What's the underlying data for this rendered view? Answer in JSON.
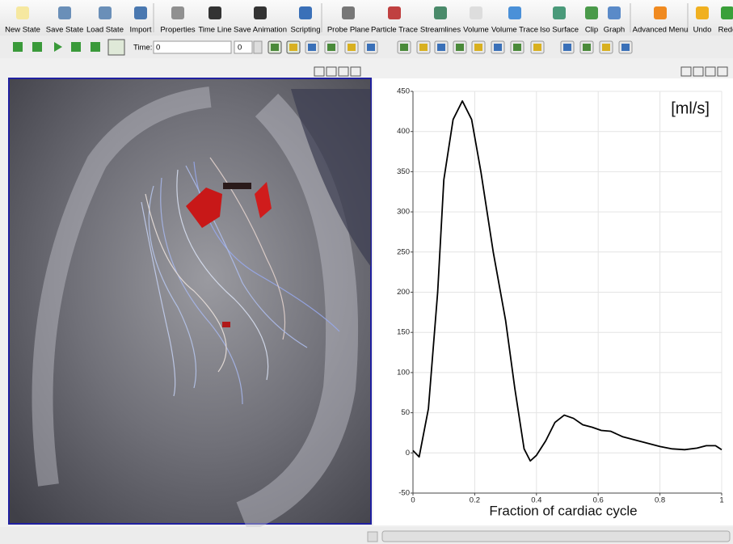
{
  "toolbar": {
    "buttons": [
      "New State",
      "Save State",
      "Load State",
      "Import",
      "Properties",
      "Time Line",
      "Save Animation",
      "Scripting",
      "Probe Plane",
      "Particle Trace",
      "Streamlines",
      "Volume",
      "Volume Trace",
      "Iso Surface",
      "Clip",
      "Graph",
      "Advanced Menu",
      "Undo",
      "Redo"
    ]
  },
  "timebar": {
    "label": "Time:",
    "time_value": "0",
    "step_value": "0"
  },
  "chart_data": {
    "type": "line",
    "annotation": "[ml/s]",
    "x_label": "Fraction of cardiac cycle",
    "color": "#000000",
    "x": [
      0,
      0.02,
      0.05,
      0.08,
      0.1,
      0.13,
      0.16,
      0.19,
      0.22,
      0.26,
      0.3,
      0.33,
      0.36,
      0.38,
      0.4,
      0.43,
      0.46,
      0.49,
      0.52,
      0.55,
      0.58,
      0.61,
      0.64,
      0.68,
      0.72,
      0.76,
      0.8,
      0.84,
      0.88,
      0.92,
      0.95,
      0.98,
      1.0
    ],
    "values": [
      3,
      -5,
      55,
      200,
      340,
      415,
      438,
      415,
      350,
      250,
      165,
      80,
      5,
      -10,
      -3,
      15,
      38,
      47,
      43,
      35,
      32,
      28,
      27,
      20,
      16,
      12,
      8,
      5,
      4,
      6,
      9,
      9,
      4
    ],
    "xlim": [
      0,
      1
    ],
    "ylim": [
      -50,
      450
    ],
    "xticks": [
      0,
      0.2,
      0.4,
      0.6,
      0.8,
      1
    ],
    "yticks": [
      -50,
      0,
      50,
      100,
      150,
      200,
      250,
      300,
      350,
      400,
      450
    ],
    "grid": true
  }
}
